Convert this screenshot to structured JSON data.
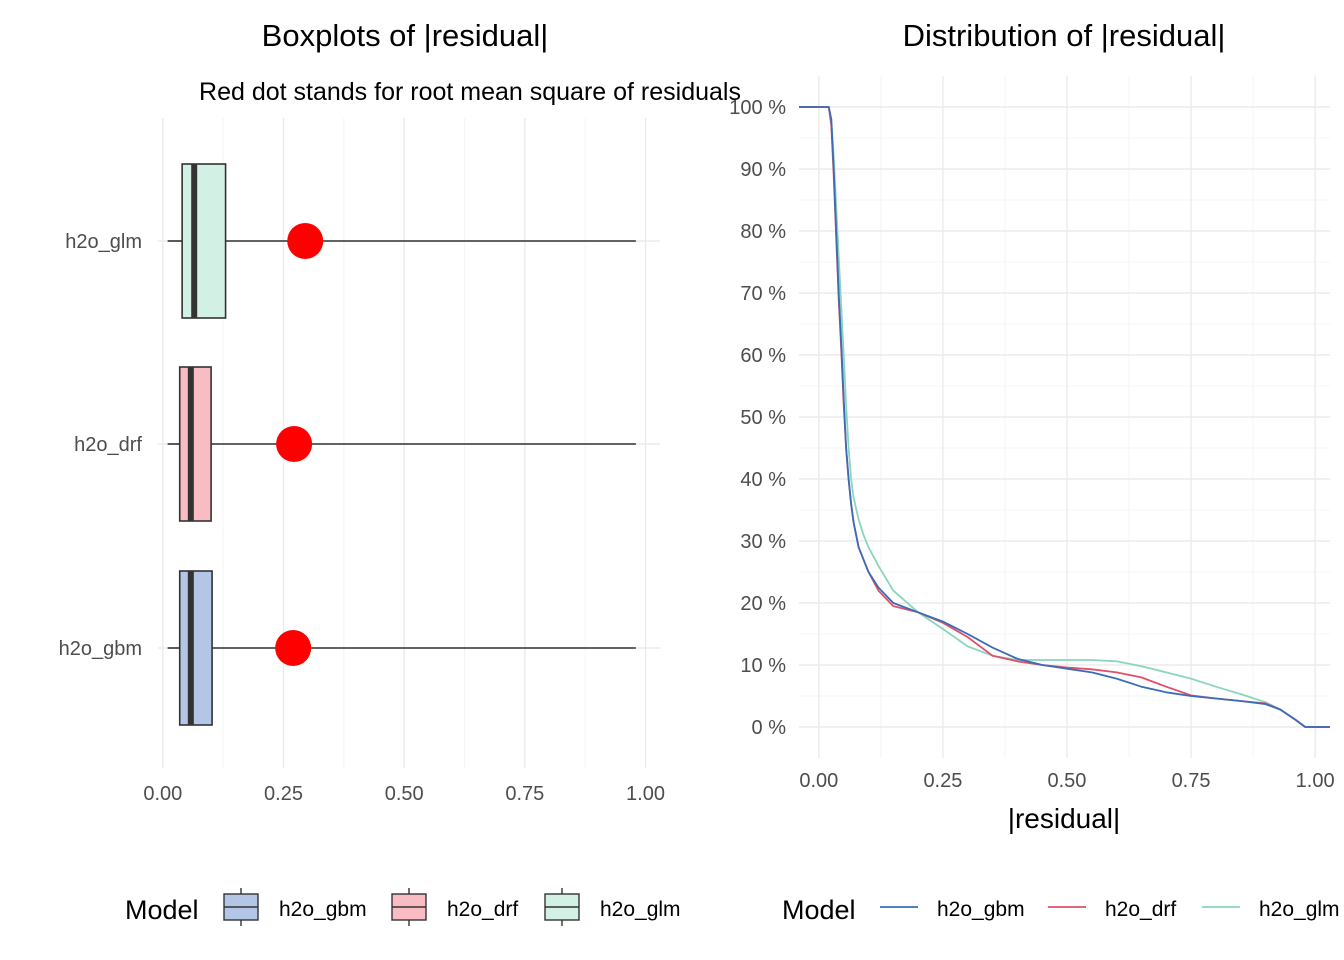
{
  "colors": {
    "h2o_gbm_fill": "#b3c6e5",
    "h2o_drf_fill": "#f8bcc2",
    "h2o_glm_fill": "#d3f0e4",
    "h2o_gbm_line": "#3b6cb7",
    "h2o_drf_line": "#e0506a",
    "h2o_glm_line": "#8ad6bd",
    "rms_dot": "#ff0000",
    "box_stroke": "#333333"
  },
  "chart_data": [
    {
      "type": "boxplot",
      "title": "Boxplots of |residual|",
      "subtitle": "Red dot stands for root mean square of residuals",
      "orientation": "horizontal",
      "xlabel": "",
      "ylabel": "",
      "xlim": [
        -0.01,
        1.03
      ],
      "xticks": [
        "0.00",
        "0.25",
        "0.50",
        "0.75",
        "1.00"
      ],
      "xtick_values": [
        0,
        0.25,
        0.5,
        0.75,
        1.0
      ],
      "categories": [
        "h2o_glm",
        "h2o_drf",
        "h2o_gbm"
      ],
      "boxes": [
        {
          "name": "h2o_glm",
          "whisker_low": 0.01,
          "q1": 0.04,
          "median": 0.065,
          "q3": 0.13,
          "whisker_high": 0.98,
          "rms": 0.295
        },
        {
          "name": "h2o_drf",
          "whisker_low": 0.01,
          "q1": 0.035,
          "median": 0.058,
          "q3": 0.1,
          "whisker_high": 0.98,
          "rms": 0.272
        },
        {
          "name": "h2o_gbm",
          "whisker_low": 0.01,
          "q1": 0.035,
          "median": 0.058,
          "q3": 0.102,
          "whisker_high": 0.98,
          "rms": 0.27
        }
      ],
      "grid": true,
      "legend": {
        "position": "bottom",
        "title": "Model",
        "entries": [
          "h2o_gbm",
          "h2o_drf",
          "h2o_glm"
        ]
      }
    },
    {
      "type": "line",
      "title": "Distribution of |residual|",
      "xlabel": "|residual|",
      "ylabel": "",
      "xlim": [
        -0.04,
        1.03
      ],
      "ylim": [
        -5,
        105
      ],
      "xticks": [
        "0.00",
        "0.25",
        "0.50",
        "0.75",
        "1.00"
      ],
      "xtick_values": [
        0,
        0.25,
        0.5,
        0.75,
        1.0
      ],
      "yticks": [
        "0 %",
        "10 %",
        "20 %",
        "30 %",
        "40 %",
        "50 %",
        "60 %",
        "70 %",
        "80 %",
        "90 %",
        "100 %"
      ],
      "ytick_values": [
        0,
        10,
        20,
        30,
        40,
        50,
        60,
        70,
        80,
        90,
        100
      ],
      "series": [
        {
          "name": "h2o_gbm",
          "x": [
            -0.04,
            0.02,
            0.025,
            0.03,
            0.035,
            0.04,
            0.045,
            0.05,
            0.055,
            0.06,
            0.065,
            0.07,
            0.08,
            0.09,
            0.1,
            0.12,
            0.15,
            0.2,
            0.25,
            0.3,
            0.35,
            0.4,
            0.45,
            0.5,
            0.55,
            0.6,
            0.65,
            0.7,
            0.75,
            0.8,
            0.85,
            0.9,
            0.93,
            0.96,
            0.98,
            1.03
          ],
          "y": [
            100,
            100,
            98,
            90,
            80,
            70,
            62,
            53,
            45,
            40,
            36,
            33,
            29,
            27,
            25,
            22.5,
            20,
            18.5,
            17,
            15,
            12.8,
            11,
            10,
            9.4,
            8.8,
            7.8,
            6.5,
            5.6,
            5,
            4.6,
            4.2,
            3.7,
            2.8,
            1.2,
            0,
            0
          ]
        },
        {
          "name": "h2o_drf",
          "x": [
            -0.04,
            0.02,
            0.025,
            0.03,
            0.035,
            0.04,
            0.045,
            0.05,
            0.055,
            0.06,
            0.065,
            0.07,
            0.08,
            0.09,
            0.1,
            0.12,
            0.15,
            0.2,
            0.25,
            0.3,
            0.35,
            0.4,
            0.45,
            0.5,
            0.55,
            0.6,
            0.65,
            0.7,
            0.75,
            0.8,
            0.85,
            0.9,
            0.93,
            0.96,
            0.98,
            1.03
          ],
          "y": [
            100,
            100,
            97,
            89,
            79,
            69,
            61,
            52,
            45,
            40,
            36,
            33,
            29,
            27,
            25,
            22,
            19.5,
            18.5,
            16.8,
            14.5,
            11.5,
            10.6,
            10,
            9.6,
            9.3,
            8.8,
            8,
            6.5,
            5.1,
            4.6,
            4.2,
            3.8,
            2.8,
            1.2,
            0,
            0
          ]
        },
        {
          "name": "h2o_glm",
          "x": [
            -0.04,
            0.02,
            0.025,
            0.03,
            0.035,
            0.04,
            0.045,
            0.05,
            0.055,
            0.06,
            0.065,
            0.07,
            0.08,
            0.09,
            0.1,
            0.12,
            0.15,
            0.2,
            0.25,
            0.3,
            0.35,
            0.4,
            0.45,
            0.5,
            0.55,
            0.6,
            0.65,
            0.7,
            0.75,
            0.8,
            0.85,
            0.9,
            0.93,
            0.96,
            0.98,
            1.03
          ],
          "y": [
            100,
            100,
            98,
            92,
            84,
            76,
            68,
            60,
            52,
            45,
            40,
            37,
            33.5,
            31,
            29,
            26,
            22,
            18.5,
            15.8,
            13,
            11.5,
            10.8,
            10.8,
            10.8,
            10.8,
            10.6,
            9.8,
            8.8,
            7.8,
            6.5,
            5.3,
            4,
            2.8,
            1.2,
            0,
            0
          ]
        }
      ],
      "grid": true,
      "legend": {
        "position": "bottom",
        "title": "Model",
        "entries": [
          "h2o_gbm",
          "h2o_drf",
          "h2o_glm"
        ]
      }
    }
  ]
}
